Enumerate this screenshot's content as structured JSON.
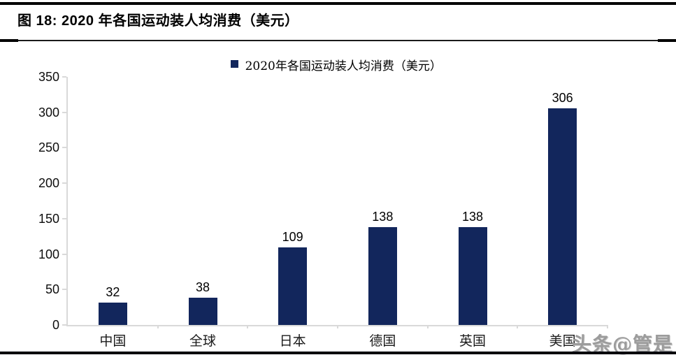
{
  "header": {
    "title": "图 18: 2020 年各国运动装人均消费（美元）"
  },
  "chart_data": {
    "type": "bar",
    "title": "2020年各国运动装人均消费（美元）",
    "legend_label": "2020年各国运动装人均消费（美元）",
    "legend_position": "top-center",
    "categories": [
      "中国",
      "全球",
      "日本",
      "德国",
      "英国",
      "美国"
    ],
    "values": [
      32,
      38,
      109,
      138,
      138,
      306
    ],
    "xlabel": "",
    "ylabel": "",
    "ylim": [
      0,
      350
    ],
    "yticks": [
      0,
      50,
      100,
      150,
      200,
      250,
      300,
      350
    ],
    "grid": false,
    "value_labels": true,
    "bar_color": "#12265c",
    "axis_color": "#d9d9d9",
    "label_color": "#000000"
  },
  "watermark": {
    "text": "头条@管是"
  }
}
